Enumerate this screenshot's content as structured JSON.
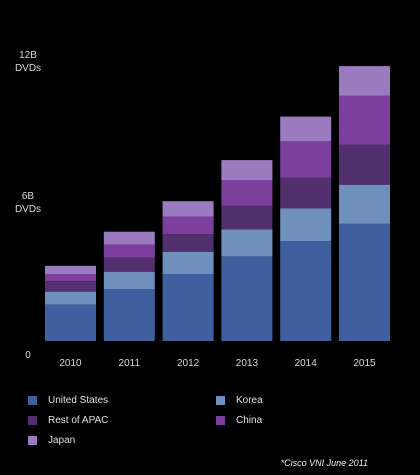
{
  "chart_data": {
    "type": "bar",
    "stacked": true,
    "categories": [
      "2010",
      "2011",
      "2012",
      "2013",
      "2014",
      "2015"
    ],
    "y_ticks": [
      {
        "value": 0,
        "label": "0"
      },
      {
        "value": 6,
        "label": "6B\nDVDs"
      },
      {
        "value": 12,
        "label": "12B\nDVDs"
      }
    ],
    "ylim": [
      0,
      12
    ],
    "grid": false,
    "legend_position": "bottom",
    "series": [
      {
        "name": "United States",
        "color": "#3f5f9e",
        "values": [
          1.55,
          2.2,
          2.85,
          3.6,
          4.25,
          5.0
        ]
      },
      {
        "name": "Korea",
        "color": "#6f8fbd",
        "values": [
          0.55,
          0.75,
          0.95,
          1.15,
          1.4,
          1.65
        ]
      },
      {
        "name": "Rest of APAC",
        "color": "#52306e",
        "values": [
          0.45,
          0.6,
          0.75,
          1.0,
          1.3,
          1.7
        ]
      },
      {
        "name": "China",
        "color": "#7d3f9e",
        "values": [
          0.3,
          0.55,
          0.75,
          1.1,
          1.55,
          2.1
        ]
      },
      {
        "name": "Japan",
        "color": "#9a7bc0",
        "values": [
          0.35,
          0.55,
          0.65,
          0.85,
          1.05,
          1.25
        ]
      }
    ],
    "annotation": "*Cisco VNI June 2011"
  }
}
